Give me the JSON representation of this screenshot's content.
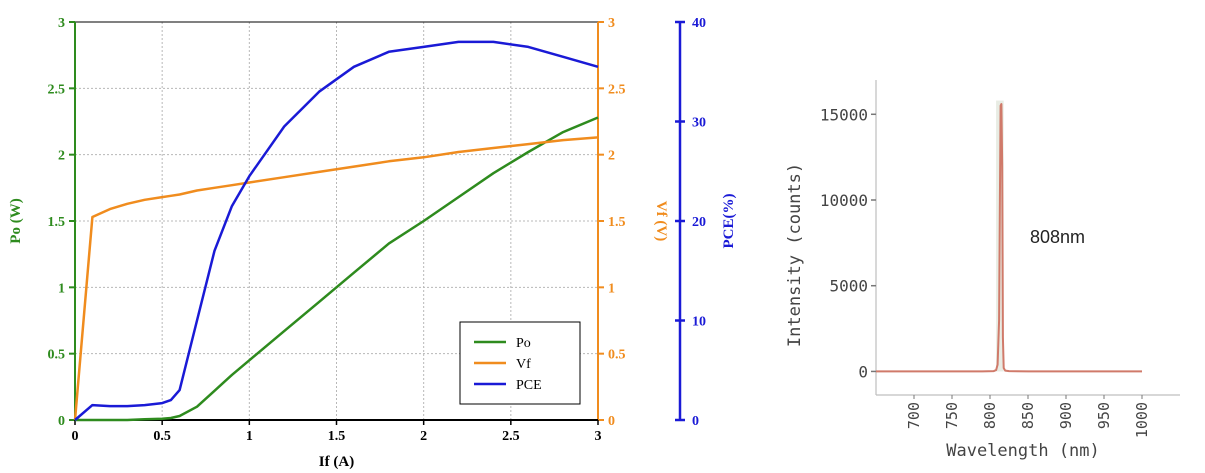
{
  "chart_data": [
    {
      "type": "line",
      "x_values": [
        0,
        0.1,
        0.2,
        0.3,
        0.4,
        0.5,
        0.55,
        0.6,
        0.7,
        0.8,
        0.9,
        1.0,
        1.2,
        1.4,
        1.6,
        1.8,
        2.0,
        2.2,
        2.4,
        2.6,
        2.8,
        3.0
      ],
      "xlabel": "If (A)",
      "xlim": [
        0,
        3
      ],
      "xticks": [
        "0",
        "0.5",
        "1",
        "1.5",
        "2",
        "2.5",
        "3"
      ],
      "axes": {
        "left": {
          "label": "Po (W)",
          "ylim": [
            0,
            3
          ],
          "ticks": [
            "0",
            "0.5",
            "1",
            "1.5",
            "2",
            "2.5",
            "3"
          ],
          "color": "#2e8b1e"
        },
        "right1": {
          "label": "Vf (V)",
          "ylim": [
            0,
            3
          ],
          "ticks": [
            "0",
            "0.5",
            "1",
            "1.5",
            "2",
            "2.5",
            "3"
          ],
          "color": "#f08c1e"
        },
        "right2": {
          "label": "PCE(%)",
          "ylim": [
            0,
            40
          ],
          "ticks": [
            "0",
            "10",
            "20",
            "30",
            "40"
          ],
          "color": "#1a1ad6"
        }
      },
      "series": [
        {
          "name": "Po",
          "axis": "left",
          "color": "#2e8b1e",
          "values": [
            0,
            0,
            0,
            0,
            0.005,
            0.01,
            0.015,
            0.03,
            0.1,
            0.22,
            0.34,
            0.45,
            0.67,
            0.89,
            1.11,
            1.33,
            1.5,
            1.68,
            1.86,
            2.02,
            2.17,
            2.28
          ]
        },
        {
          "name": "Vf",
          "axis": "right1",
          "color": "#f08c1e",
          "values": [
            0,
            1.53,
            1.59,
            1.63,
            1.66,
            1.68,
            1.69,
            1.7,
            1.73,
            1.75,
            1.77,
            1.79,
            1.83,
            1.87,
            1.91,
            1.95,
            1.98,
            2.02,
            2.05,
            2.08,
            2.11,
            2.13
          ]
        },
        {
          "name": "PCE",
          "axis": "right2",
          "color": "#1a1ad6",
          "values": [
            0,
            1.5,
            1.4,
            1.4,
            1.5,
            1.7,
            2.0,
            3.0,
            10.0,
            17.0,
            21.5,
            24.5,
            29.5,
            33.0,
            35.5,
            37.0,
            37.5,
            38.0,
            38.0,
            37.5,
            36.5,
            35.5
          ]
        }
      ],
      "legend": [
        "Po",
        "Vf",
        "PCE"
      ],
      "legend_position": "bottom-right",
      "grid": true
    },
    {
      "type": "line",
      "xlabel": "Wavelength (nm)",
      "ylabel": "Intensity (counts)",
      "xlim": [
        650,
        1050
      ],
      "ylim": [
        -500,
        17000
      ],
      "xticks": [
        "700",
        "750",
        "800",
        "850",
        "900",
        "950",
        "1000"
      ],
      "yticks": [
        "0",
        "5000",
        "10000",
        "15000"
      ],
      "series": [
        {
          "name": "",
          "color": "#d07a6a",
          "x": [
            650,
            700,
            790,
            805,
            808,
            810,
            812,
            813,
            814,
            815,
            816,
            817,
            818,
            820,
            825,
            850,
            900,
            1000
          ],
          "y": [
            0,
            0,
            0,
            20,
            80,
            400,
            3000,
            10000,
            15500,
            15600,
            12000,
            2000,
            200,
            50,
            20,
            0,
            0,
            0
          ]
        }
      ],
      "annotations": [
        "808nm"
      ],
      "grid": false
    }
  ]
}
